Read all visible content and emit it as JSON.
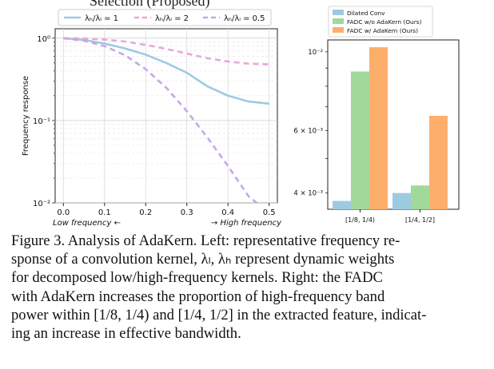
{
  "top_fragment": "Selection (Proposed)",
  "chart_data": [
    {
      "type": "line",
      "ylabel": "Frequency response",
      "xlabel_left": "Low frequency ←",
      "xlabel_right": "→ High frequency",
      "yscale": "log",
      "ylim": [
        0.01,
        1.3
      ],
      "xlim": [
        -0.02,
        0.52
      ],
      "x_ticks": [
        "0.0",
        "0.1",
        "0.2",
        "0.3",
        "0.4",
        "0.5"
      ],
      "x_tick_values": [
        0.0,
        0.1,
        0.2,
        0.3,
        0.4,
        0.5
      ],
      "y_ticks": [
        "10⁰",
        "10⁻¹",
        "10⁻²"
      ],
      "y_tick_values": [
        1,
        0.1,
        0.01
      ],
      "grid": true,
      "legend_position": "top",
      "series": [
        {
          "name": "λₕ/λₗ = 1",
          "color": "#9ecae1",
          "dashed": false,
          "x": [
            0.0,
            0.05,
            0.1,
            0.15,
            0.2,
            0.25,
            0.3,
            0.35,
            0.4,
            0.45,
            0.5
          ],
          "values": [
            1.0,
            0.95,
            0.86,
            0.75,
            0.63,
            0.5,
            0.38,
            0.26,
            0.2,
            0.17,
            0.16
          ]
        },
        {
          "name": "λₕ/λₗ = 2",
          "color": "#e9a6d9",
          "dashed": true,
          "x": [
            0.0,
            0.05,
            0.1,
            0.15,
            0.2,
            0.25,
            0.3,
            0.35,
            0.4,
            0.45,
            0.5
          ],
          "values": [
            1.0,
            0.99,
            0.96,
            0.91,
            0.83,
            0.74,
            0.65,
            0.57,
            0.52,
            0.49,
            0.48
          ]
        },
        {
          "name": "λₕ/λₗ = 0.5",
          "color": "#c6a8e6",
          "dashed": true,
          "x": [
            0.0,
            0.05,
            0.1,
            0.15,
            0.2,
            0.25,
            0.3,
            0.35,
            0.4,
            0.45,
            0.47
          ],
          "values": [
            1.0,
            0.93,
            0.8,
            0.62,
            0.42,
            0.25,
            0.13,
            0.062,
            0.028,
            0.012,
            0.0085
          ]
        }
      ]
    },
    {
      "type": "bar",
      "yscale": "log",
      "ylim": [
        0.0036,
        0.0108
      ],
      "categories": [
        "[1/8, 1/4)",
        "[1/4, 1/2]"
      ],
      "y_ticks": [
        "10⁻²",
        "6 × 10⁻³",
        "4 × 10⁻³"
      ],
      "y_tick_values": [
        0.01,
        0.006,
        0.004
      ],
      "legend_position": "top-left",
      "series": [
        {
          "name": "Dilated Conv",
          "color": "#9ecae1",
          "values": [
            0.0038,
            0.004
          ]
        },
        {
          "name": "FADC w/o AdaKern (Ours)",
          "color": "#a1d99b",
          "values": [
            0.0088,
            0.0042
          ]
        },
        {
          "name": "FADC w/ AdaKern (Ours)",
          "color": "#fdae6b",
          "values": [
            0.0103,
            0.0066
          ]
        }
      ]
    }
  ],
  "caption": {
    "lines": [
      "Figure 3. Analysis of AdaKern. Left: representative frequency re-",
      "sponse of a convolution kernel, λₗ, λₕ represent dynamic weights",
      "for decomposed low/high-frequency kernels.  Right: the FADC",
      "with AdaKern increases the proportion of high-frequency band",
      "power within [1/8, 1/4) and [1/4, 1/2] in the extracted feature, indicat-",
      "ing an increase in effective bandwidth."
    ]
  }
}
